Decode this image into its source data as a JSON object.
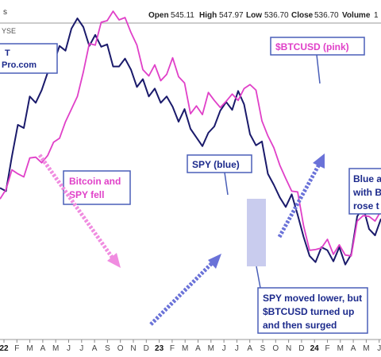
{
  "header": {
    "open_label": "Open",
    "open_value": "545.11",
    "high_label": "High",
    "high_value": "547.97",
    "low_label": "Low",
    "low_value": "536.70",
    "close_label": "Close",
    "close_value": "536.70",
    "volume_label": "Volume",
    "volume_value": "1",
    "exchange": "YSE"
  },
  "logo_box": {
    "line1": "T",
    "line2": "Pro.com"
  },
  "annotations": {
    "btc_label": "$BTCUSD (pink)",
    "spy_label": "SPY (blue)",
    "fell_line1": "Bitcoin and",
    "fell_line2": "SPY fell",
    "lower_line1": "SPY moved lower, but",
    "lower_line2": "$BTCUSD turned up",
    "lower_line3": "and then surged",
    "blue_line1": "Blue a",
    "blue_line2": "with B",
    "blue_line3": "rose t"
  },
  "colors": {
    "spy": "#1a1a6b",
    "btc": "#e040c8",
    "annotation_text_pink": "#e040c8",
    "annotation_text_blue": "#1c2a8c",
    "arrow_pink": "#f08ce0",
    "arrow_blue": "#6a72d8",
    "highlight": "#b7bbe8"
  },
  "chart_data": {
    "type": "line",
    "x_tick_labels": [
      "22",
      "F",
      "M",
      "A",
      "M",
      "J",
      "J",
      "A",
      "S",
      "O",
      "N",
      "D",
      "23",
      "F",
      "M",
      "A",
      "M",
      "J",
      "J",
      "A",
      "S",
      "O",
      "N",
      "D",
      "24",
      "F",
      "M",
      "A",
      "M",
      "J"
    ],
    "series": [
      {
        "name": "SPY (blue)",
        "color": "#1a1a6b",
        "values": [
          192,
          188,
          232,
          272,
          268,
          308,
          300,
          316,
          338,
          350,
          372,
          366,
          394,
          407,
          396,
          372,
          386,
          371,
          374,
          346,
          346,
          356,
          342,
          320,
          330,
          308,
          318,
          300,
          308,
          295,
          276,
          292,
          267,
          256,
          245,
          262,
          270,
          290,
          301,
          291,
          315,
          298,
          260,
          246,
          251,
          210,
          196,
          180,
          168,
          184,
          158,
          130,
          106,
          98,
          117,
          113,
          99,
          117,
          95,
          108,
          156,
          168,
          140,
          132,
          153
        ]
      },
      {
        "name": "$BTCUSD (pink)",
        "color": "#e040c8",
        "values": [
          178,
          190,
          215,
          210,
          206,
          230,
          231,
          224,
          233,
          250,
          255,
          276,
          292,
          308,
          339,
          375,
          373,
          402,
          404,
          416,
          405,
          408,
          389,
          373,
          342,
          334,
          348,
          328,
          336,
          357,
          333,
          325,
          286,
          296,
          285,
          313,
          303,
          294,
          302,
          311,
          303,
          318,
          323,
          316,
          277,
          258,
          243,
          221,
          204,
          188,
          187,
          144,
          113,
          114,
          116,
          127,
          108,
          120,
          107,
          106,
          150,
          157,
          156,
          150,
          163
        ]
      }
    ]
  }
}
